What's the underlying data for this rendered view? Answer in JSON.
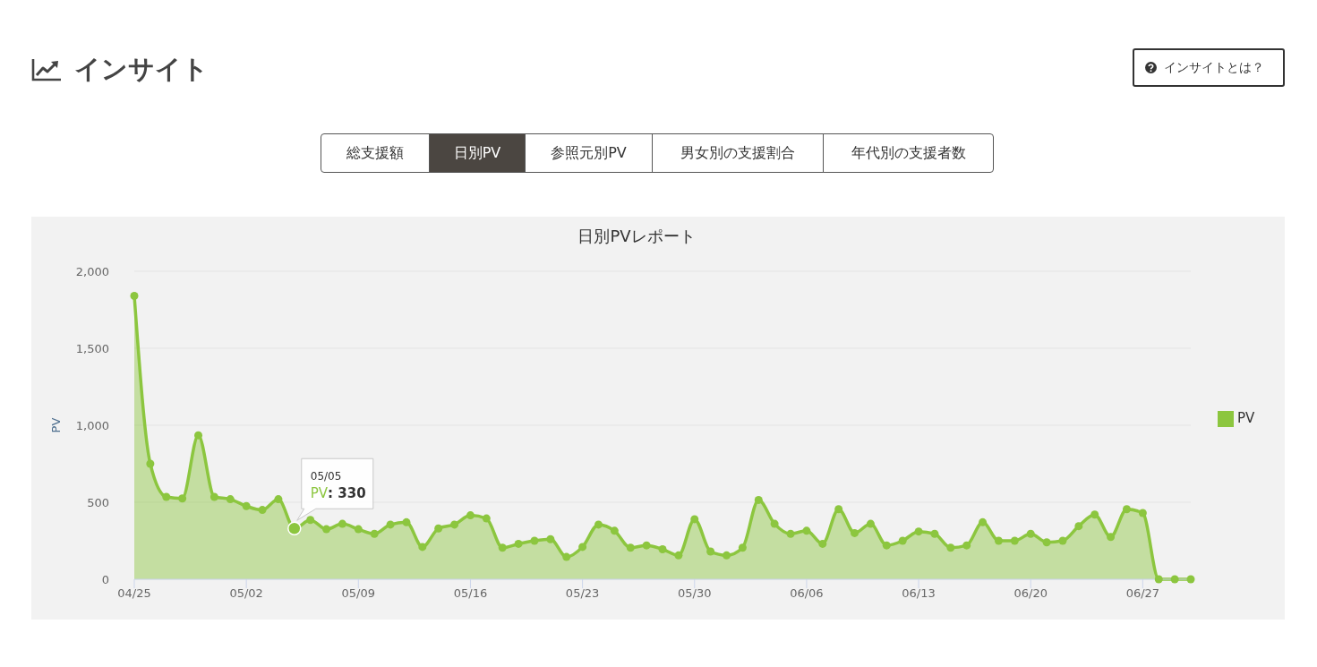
{
  "chart_data": [
    {
      "type": "other",
      "title": "インサイト",
      "annotations": [
        "インサイトとは？",
        "総支援額",
        "日別PV",
        "参照元別PV",
        "男女別の支援割合",
        "年代別の支援者数"
      ]
    },
    {
      "type": "area",
      "title": "日別PVレポート",
      "ylabel": "PV",
      "x": [
        "--04-25",
        "--04-26",
        "--04-27",
        "--04-28",
        "--04-29",
        "--04-30",
        "--05-01",
        "--05-02",
        "--05-03",
        "--05-04",
        "--05-05",
        "--05-06",
        "--05-07",
        "--05-08",
        "--05-09",
        "--05-10",
        "--05-11",
        "--05-12",
        "--05-13",
        "--05-14",
        "--05-15",
        "--05-16",
        "--05-17",
        "--05-18",
        "--05-19",
        "--05-20",
        "--05-21",
        "--05-22",
        "--05-23",
        "--05-24",
        "--05-25",
        "--05-26",
        "--05-27",
        "--05-28",
        "--05-29",
        "--05-30",
        "--05-31",
        "--06-01",
        "--06-02",
        "--06-03",
        "--06-04",
        "--06-05",
        "--06-06",
        "--06-07",
        "--06-08",
        "--06-09",
        "--06-10",
        "--06-11",
        "--06-12",
        "--06-13",
        "--06-14",
        "--06-15",
        "--06-16",
        "--06-17",
        "--06-18",
        "--06-19",
        "--06-20",
        "--06-21",
        "--06-22",
        "--06-23",
        "--06-24",
        "--06-25",
        "--06-26",
        "--06-27",
        "--06-28",
        "--06-29",
        "--06-30"
      ],
      "series": [
        {
          "name": "PV",
          "color": "#8cc63f",
          "values": [
            1840,
            750,
            535,
            525,
            935,
            535,
            520,
            475,
            450,
            520,
            330,
            385,
            325,
            360,
            325,
            295,
            355,
            370,
            210,
            330,
            355,
            415,
            395,
            205,
            230,
            250,
            260,
            145,
            210,
            355,
            315,
            205,
            220,
            195,
            155,
            390,
            180,
            155,
            205,
            515,
            360,
            295,
            315,
            230,
            455,
            300,
            360,
            220,
            250,
            310,
            295,
            205,
            220,
            370,
            250,
            250,
            295,
            240,
            250,
            345,
            420,
            275,
            455,
            430,
            0,
            0,
            0
          ]
        }
      ],
      "xlim": [
        "--04-25",
        "--06-30"
      ],
      "xticks": [
        {
          "value": "--04-25",
          "label": "04/25"
        },
        {
          "value": "--05-02",
          "label": "05/02"
        },
        {
          "value": "--05-09",
          "label": "05/09"
        },
        {
          "value": "--05-16",
          "label": "05/16"
        },
        {
          "value": "--05-23",
          "label": "05/23"
        },
        {
          "value": "--05-30",
          "label": "05/30"
        },
        {
          "value": "--06-06",
          "label": "06/06"
        },
        {
          "value": "--06-13",
          "label": "06/13"
        },
        {
          "value": "--06-20",
          "label": "06/20"
        },
        {
          "value": "--06-27",
          "label": "06/27"
        }
      ],
      "ylim": [
        0,
        2000
      ],
      "yticks": [
        0,
        500,
        {
          "value": 1000,
          "label": "1,000"
        },
        {
          "value": 1500,
          "label": "1,500"
        },
        {
          "value": 2000,
          "label": "2,000"
        }
      ],
      "grid": "y",
      "legend": "right",
      "marker": "circle",
      "line_style": "solid",
      "annotations": [
        {
          "text": "05/05\nPV: 330",
          "x": "--05-05",
          "y": 330
        }
      ]
    }
  ]
}
